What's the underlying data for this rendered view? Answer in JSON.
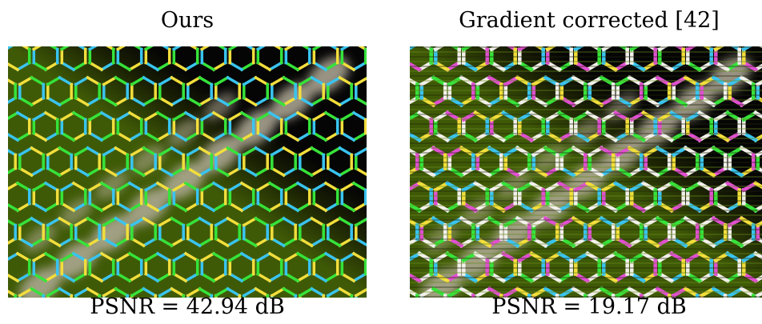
{
  "panels": [
    {
      "title": "Ours",
      "caption": "PSNR = 42.94 dB"
    },
    {
      "title": "Gradient corrected [42]",
      "caption": "PSNR = 19.17 dB"
    }
  ],
  "colors": {
    "green_background": "#3f5a06",
    "black_background": "#050505",
    "gray_blob": "#b2ac98",
    "edge_cyan": "#39c4f0",
    "edge_yellow": "#f2de3c",
    "edge_green": "#36e33a",
    "edge_magenta": "#e04fd0",
    "edge_white": "#f2f0ea"
  }
}
